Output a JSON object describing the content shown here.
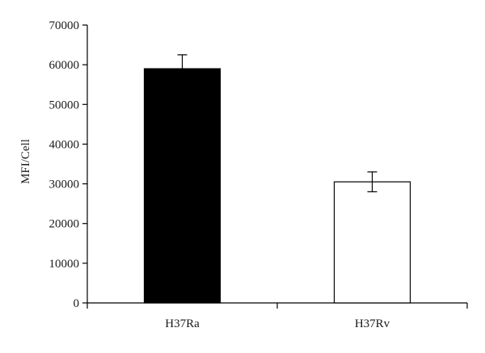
{
  "chart_data": {
    "type": "bar",
    "categories": [
      "H37Ra",
      "H37Rv"
    ],
    "values": [
      59000,
      30500
    ],
    "error": [
      3500,
      2500
    ],
    "ylabel": "MFI/Cell",
    "xlabel": "",
    "ylim": [
      0,
      70000
    ],
    "yticks": [
      0,
      10000,
      20000,
      30000,
      40000,
      50000,
      60000,
      70000
    ],
    "grid": false,
    "legend": "none",
    "bar_fill": [
      "#000000",
      "#ffffff"
    ],
    "bar_stroke": "#000000"
  }
}
